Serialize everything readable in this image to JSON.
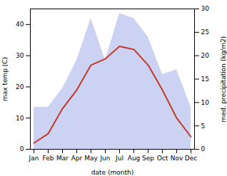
{
  "chart_data": {
    "type": "line",
    "xlabel": "date (month)",
    "ylabel": "max temp (C)",
    "y2label": "med. precipitation (kg/m2)",
    "categories": [
      "Jan",
      "Feb",
      "Mar",
      "Apr",
      "May",
      "Jun",
      "Jul",
      "Aug",
      "Sep",
      "Oct",
      "Nov",
      "Dec"
    ],
    "series": [
      {
        "type": "area",
        "axis": "y2",
        "color": "#aab4e8",
        "values": [
          9,
          9,
          13,
          19,
          28,
          19,
          29,
          28,
          24,
          16,
          17,
          9
        ]
      },
      {
        "type": "line",
        "color": "#c0392b",
        "values": [
          2,
          5,
          13,
          19,
          27,
          29,
          33,
          32,
          27,
          19,
          10,
          4
        ]
      }
    ],
    "ylim": [
      0,
      45
    ],
    "yticks": [
      0,
      10,
      20,
      30,
      40
    ],
    "y2lim": [
      0,
      30
    ],
    "y2ticks": [
      0,
      5,
      10,
      15,
      20,
      25,
      30
    ]
  }
}
